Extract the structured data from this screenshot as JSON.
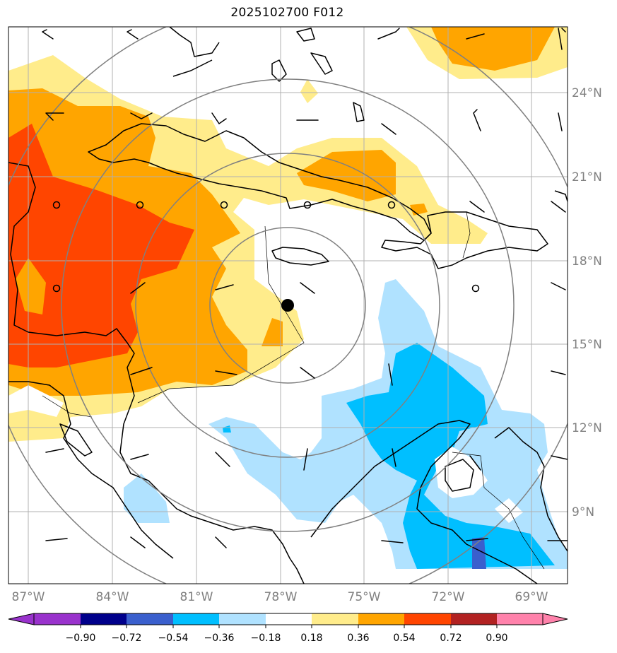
{
  "title": "2025102700 F012",
  "map": {
    "lon_labels": [
      "87°W",
      "84°W",
      "81°W",
      "78°W",
      "75°W",
      "72°W",
      "69°W"
    ],
    "lat_labels": [
      "24°N",
      "21°N",
      "18°N",
      "15°N",
      "12°N",
      "9°N"
    ],
    "storm_center": {
      "lon": "78°W",
      "lat": "16.4°N"
    },
    "colors": {
      "gridline": "#b0b0b0",
      "range_ring": "#808080",
      "coast": "#000000",
      "storm_marker": "#000000"
    }
  },
  "colorbar": {
    "labels": [
      "−0.90",
      "−0.72",
      "−0.54",
      "−0.36",
      "−0.18",
      "0.18",
      "0.36",
      "0.54",
      "0.72",
      "0.90"
    ],
    "colors": [
      "#9932cc",
      "#00008b",
      "#3a5fcd",
      "#00bfff",
      "#b0e2ff",
      "#ffffff",
      "#ffec8b",
      "#ffa500",
      "#ff4500",
      "#b22222",
      "#ff82ab"
    ]
  }
}
